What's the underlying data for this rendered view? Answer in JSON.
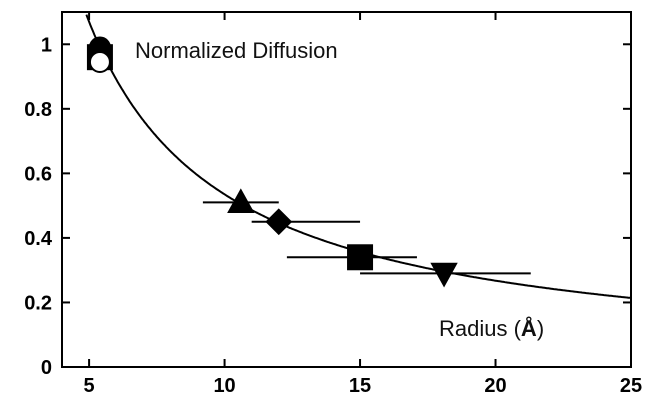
{
  "chart_data": {
    "type": "scatter",
    "title": "",
    "xlabel": "",
    "ylabel": "",
    "xlim": [
      4,
      25
    ],
    "ylim": [
      0,
      1.1
    ],
    "x_ticks": [
      5,
      10,
      15,
      20,
      25
    ],
    "y_ticks": [
      0,
      0.2,
      0.4,
      0.6,
      0.8,
      1
    ],
    "x_tick_labels": [
      "5",
      "10",
      "15",
      "20",
      "25"
    ],
    "y_tick_labels": [
      "0",
      "0.2",
      "0.4",
      "0.6",
      "0.8",
      "1"
    ],
    "annotations": {
      "top": "Normalized Diffusion",
      "bottom_prefix": "Radius (",
      "bottom_symbol": "Å",
      "bottom_suffix": ")"
    },
    "points": [
      {
        "x": 5.4,
        "y": 0.99,
        "marker": "circle",
        "fill": "#000000"
      },
      {
        "x": 5.4,
        "y": 0.96,
        "marker": "square",
        "fill": "#000000"
      },
      {
        "x": 5.4,
        "y": 0.945,
        "marker": "circle",
        "fill": "#ffffff"
      },
      {
        "x": 10.6,
        "y": 0.51,
        "marker": "triangle-up",
        "fill": "#000000",
        "xerr": [
          9.2,
          12.0
        ]
      },
      {
        "x": 12.0,
        "y": 0.45,
        "marker": "diamond",
        "fill": "#000000",
        "xerr": [
          11.0,
          15.0
        ]
      },
      {
        "x": 15.0,
        "y": 0.34,
        "marker": "square",
        "fill": "#000000",
        "xerr": [
          12.3,
          17.1
        ]
      },
      {
        "x": 18.1,
        "y": 0.29,
        "marker": "triangle-down",
        "fill": "#000000",
        "xerr": [
          15.0,
          21.3
        ]
      }
    ],
    "fit_curve": {
      "form": "a / x",
      "a": 5.35,
      "x_range": [
        4.9,
        25
      ]
    },
    "grid": false,
    "legend": "none"
  }
}
